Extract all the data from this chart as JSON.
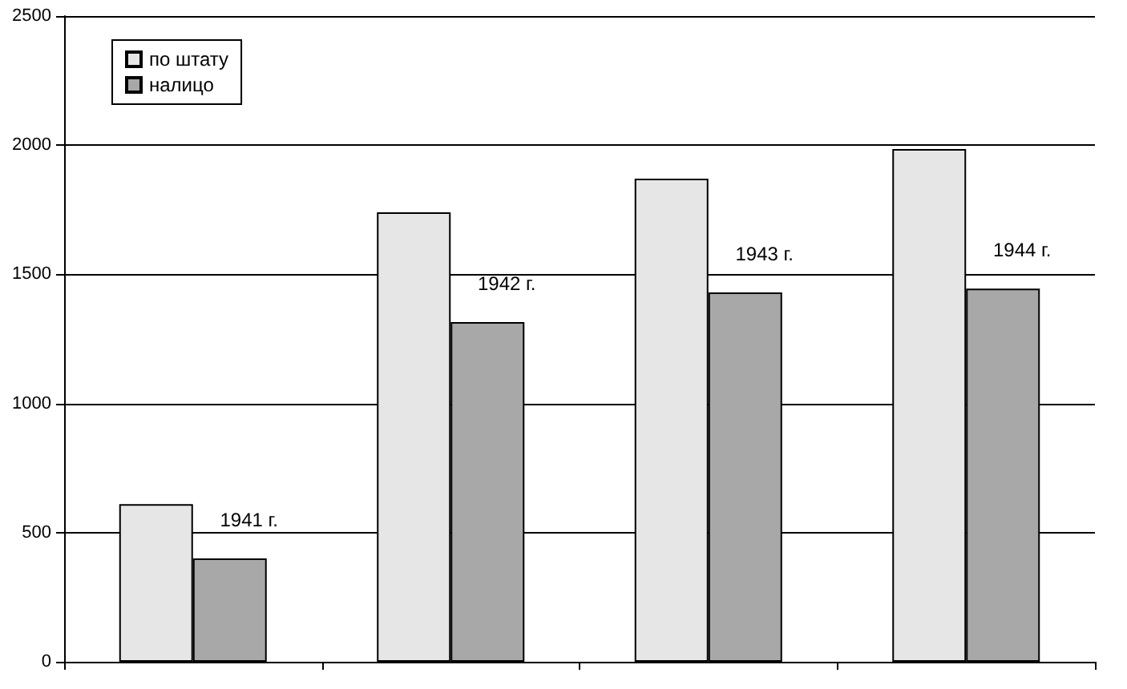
{
  "chart_data": {
    "type": "bar",
    "categories": [
      "1941 г.",
      "1942 г.",
      "1943 г.",
      "1944 г."
    ],
    "series": [
      {
        "name": "по штату",
        "color": "#e6e6e6",
        "values": [
          610,
          1740,
          1870,
          1985
        ]
      },
      {
        "name": "налицо",
        "color": "#a8a8a8",
        "values": [
          400,
          1315,
          1430,
          1445
        ]
      }
    ],
    "ylim": [
      0,
      2500
    ],
    "yticks": [
      0,
      500,
      1000,
      1500,
      2000,
      2500
    ],
    "grid": "y",
    "legend": "top left",
    "tick_labels": "y"
  }
}
